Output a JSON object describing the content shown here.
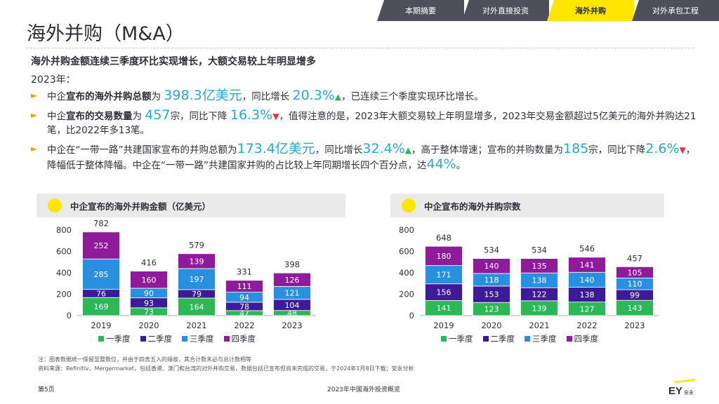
{
  "tabs": [
    {
      "label": "本期摘要",
      "active": false
    },
    {
      "label": "对外直接投资",
      "active": false
    },
    {
      "label": "海外并购",
      "active": true
    },
    {
      "label": "对外承包工程",
      "active": false
    }
  ],
  "page_title": "海外并购（M&A）",
  "headline": "海外并购金额连续三季度环比实现增长，大额交易较上年明显增多",
  "year_label": "2023年：",
  "bullets": [
    {
      "parts": [
        {
          "t": "中企"
        },
        {
          "t": "宣布的海外并购总额",
          "b": true
        },
        {
          "t": "为 "
        },
        {
          "t": "398.3亿美元",
          "hl": true
        },
        {
          "t": "，同比增长 "
        },
        {
          "t": "20.3%",
          "hl": true
        },
        {
          "t": "▲",
          "up": true
        },
        {
          "t": "，已连续三个季度实现环比增长。"
        }
      ]
    },
    {
      "parts": [
        {
          "t": "中企"
        },
        {
          "t": "宣布的交易数量",
          "b": true
        },
        {
          "t": "为 "
        },
        {
          "t": "457",
          "hl": true
        },
        {
          "t": "宗，同比下降 "
        },
        {
          "t": "16.3%",
          "hl": true
        },
        {
          "t": "▼",
          "down": true
        },
        {
          "t": "，值得注意的是，2023年大额交易较上年明显增多，2023年交易金额超过5亿美元的海外并购达21笔，比2022年多13笔。"
        }
      ]
    },
    {
      "parts": [
        {
          "t": "中企在“一带一路”共建国家宣布的并购总额为"
        },
        {
          "t": "173.4亿美元",
          "hl": true
        },
        {
          "t": "，同比增长"
        },
        {
          "t": "32.4%",
          "hl": true
        },
        {
          "t": "▲",
          "up": true
        },
        {
          "t": "，高于整体增速；宣布的并购数量为"
        },
        {
          "t": "185",
          "hl": true
        },
        {
          "t": "宗，同比下降"
        },
        {
          "t": "2.6%",
          "hl": true
        },
        {
          "t": "▼",
          "down": true
        },
        {
          "t": "，降幅低于整体降幅。中企在“一带一路”共建国家并购的占比较上年同期增长四个百分点，达"
        },
        {
          "t": "44%",
          "hl": true
        },
        {
          "t": "。"
        }
      ]
    }
  ],
  "chart_data": [
    {
      "type": "bar",
      "stacked": true,
      "title": "中企宣布的海外并购金额（亿美元）",
      "categories": [
        "2019",
        "2020",
        "2021",
        "2022",
        "2023"
      ],
      "ylim": [
        0,
        800
      ],
      "yticks": [
        "0",
        "200",
        "400",
        "600",
        "800"
      ],
      "totals": [
        "782",
        "416",
        "579",
        "331",
        "398"
      ],
      "series": [
        {
          "name": "一季度",
          "color": "#2db757",
          "values": [
            169,
            73,
            164,
            47,
            48
          ]
        },
        {
          "name": "二季度",
          "color": "#3e1b96",
          "values": [
            76,
            93,
            79,
            78,
            104
          ]
        },
        {
          "name": "三季度",
          "color": "#2b8fdf",
          "values": [
            285,
            90,
            197,
            94,
            121
          ]
        },
        {
          "name": "四季度",
          "color": "#8e1b9a",
          "values": [
            252,
            160,
            139,
            111,
            126
          ]
        }
      ]
    },
    {
      "type": "bar",
      "stacked": true,
      "title": "中企宣布的海外并购宗数",
      "categories": [
        "2019",
        "2020",
        "2021",
        "2022",
        "2023"
      ],
      "ylim": [
        0,
        800
      ],
      "yticks": [
        "0",
        "200",
        "400",
        "600",
        "800"
      ],
      "totals": [
        "648",
        "534",
        "534",
        "546",
        "457"
      ],
      "series": [
        {
          "name": "一季度",
          "color": "#2db757",
          "values": [
            141,
            123,
            139,
            127,
            143
          ]
        },
        {
          "name": "二季度",
          "color": "#3e1b96",
          "values": [
            156,
            153,
            122,
            138,
            99
          ]
        },
        {
          "name": "三季度",
          "color": "#2b8fdf",
          "values": [
            171,
            118,
            138,
            140,
            110
          ]
        },
        {
          "name": "四季度",
          "color": "#8e1b9a",
          "values": [
            180,
            140,
            135,
            141,
            105
          ]
        }
      ]
    }
  ],
  "notes": [
    "注：图表数据统一保留至整数位，并由于四舍五入的缘故，其合计数未必与总计数相等",
    "资料来源：Refinitiv、Mergermarket，包括香港、澳门和台湾的对外并购交易，数据包括已宣布但尚未完成的交易，于2024年1月8日下载；安永分析"
  ],
  "footer": {
    "page": "第5页",
    "report": "2023年中国海外投资概览"
  },
  "logo": {
    "text": "EY",
    "sub": "安永",
    "color": "#ffe600"
  }
}
